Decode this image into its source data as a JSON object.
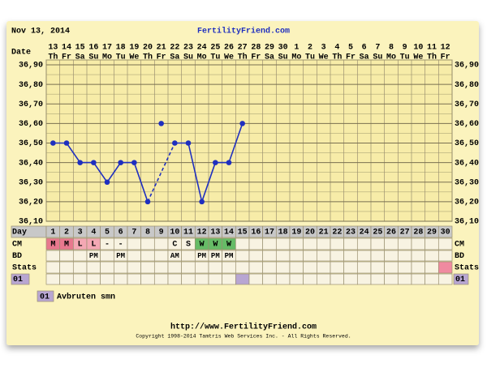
{
  "header": {
    "date": "Nov 13, 2014",
    "site": "FertilityFriend.com"
  },
  "chart_data": {
    "type": "line",
    "date_label": "Date",
    "categories": [
      "13",
      "14",
      "15",
      "16",
      "17",
      "18",
      "19",
      "20",
      "21",
      "22",
      "23",
      "24",
      "25",
      "26",
      "27",
      "28",
      "29",
      "30",
      "1",
      "2",
      "3",
      "4",
      "5",
      "6",
      "7",
      "8",
      "9",
      "10",
      "11",
      "12"
    ],
    "weekdays": [
      "Th",
      "Fr",
      "Sa",
      "Su",
      "Mo",
      "Tu",
      "We",
      "Th",
      "Fr",
      "Sa",
      "Su",
      "Mo",
      "Tu",
      "We",
      "Th",
      "Fr",
      "Sa",
      "Su",
      "Mo",
      "Tu",
      "We",
      "Th",
      "Fr",
      "Sa",
      "Su",
      "Mo",
      "Tu",
      "We",
      "Th",
      "Fr"
    ],
    "values": [
      36.5,
      36.5,
      36.4,
      36.4,
      36.3,
      36.4,
      36.4,
      36.2,
      36.6,
      36.5,
      36.5,
      36.2,
      36.4,
      36.4,
      36.6,
      null,
      null,
      null,
      null,
      null,
      null,
      null,
      null,
      null,
      null,
      null,
      null,
      null,
      null,
      null
    ],
    "discarded": [
      8
    ],
    "color": "#1f2fbf",
    "ylim": [
      36.1,
      36.9
    ],
    "yticks": [
      {
        "value": 36.9,
        "label": "36,90"
      },
      {
        "value": 36.8,
        "label": "36,80"
      },
      {
        "value": 36.7,
        "label": "36,70"
      },
      {
        "value": 36.6,
        "label": "36,60"
      },
      {
        "value": 36.5,
        "label": "36,50"
      },
      {
        "value": 36.4,
        "label": "36,40"
      },
      {
        "value": 36.3,
        "label": "36,30"
      },
      {
        "value": 36.2,
        "label": "36,20"
      },
      {
        "value": 36.1,
        "label": "36,10"
      }
    ],
    "grid": true,
    "day_label": "Day",
    "cycle_days": [
      "1",
      "2",
      "3",
      "4",
      "5",
      "6",
      "7",
      "8",
      "9",
      "10",
      "11",
      "12",
      "13",
      "14",
      "15",
      "16",
      "17",
      "18",
      "19",
      "20",
      "21",
      "22",
      "23",
      "24",
      "25",
      "26",
      "27",
      "28",
      "29",
      "30"
    ],
    "cm": {
      "label": "CM",
      "cells": [
        "M",
        "M",
        "L",
        "L",
        "-",
        "-",
        null,
        null,
        null,
        "C",
        "S",
        "W",
        "W",
        "W",
        null,
        null,
        null,
        null,
        null,
        null,
        null,
        null,
        null,
        null,
        null,
        null,
        null,
        null,
        null,
        null
      ],
      "colors": {
        "M": "#e8788e",
        "L": "#f4a8b4",
        "W": "#66bb66"
      }
    },
    "bd": {
      "label": "BD",
      "cells": [
        null,
        null,
        null,
        "PM",
        null,
        "PM",
        null,
        null,
        null,
        "AM",
        null,
        "PM",
        "PM",
        "PM",
        null,
        null,
        null,
        null,
        null,
        null,
        null,
        null,
        null,
        null,
        null,
        null,
        null,
        null,
        null,
        null
      ]
    },
    "stats": {
      "label": "Stats",
      "marked": [
        29
      ],
      "color": "#f08aa0"
    },
    "custom": {
      "label": "01",
      "marked": [
        14
      ],
      "color": "#b8a6d2"
    }
  },
  "legend": {
    "code": "01",
    "text": "Avbruten smn"
  },
  "footer": {
    "url": "http://www.FertilityFriend.com",
    "copyright": "Copyright 1998-2014 Tamtris Web Services Inc. - All Rights Reserved."
  }
}
